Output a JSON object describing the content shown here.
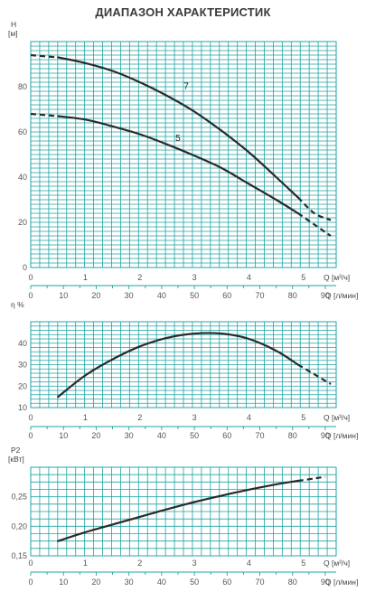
{
  "title": "ДИАПАЗОН ХАРАКТЕРИСТИК",
  "chart_data": [
    {
      "type": "line",
      "ylabel": "H",
      "yunit": "[м]",
      "xlabel": "Q [м³/ч]",
      "x2label": "Q [л/мин]",
      "xlim": [
        0,
        5.6
      ],
      "ylim": [
        0,
        100
      ],
      "yticks": [
        0,
        20,
        40,
        60,
        80
      ],
      "xticks": [
        "0",
        "1",
        "2",
        "3",
        "4",
        "5"
      ],
      "x2ticks": [
        "0",
        "10",
        "20",
        "30",
        "40",
        "50",
        "60",
        "70",
        "80",
        "90"
      ],
      "series": [
        {
          "name": "7",
          "x": [
            0,
            0.5,
            1,
            1.5,
            2,
            2.5,
            3,
            3.5,
            4,
            4.5,
            4.9,
            5.2,
            5.5
          ],
          "y": [
            94,
            93,
            90.5,
            87,
            82,
            76,
            69,
            60.5,
            51,
            40,
            31,
            24,
            21
          ],
          "dashed_until": 0.5,
          "dashed_from": 4.9
        },
        {
          "name": "5",
          "x": [
            0,
            0.5,
            1,
            1.5,
            2,
            2.5,
            3,
            3.5,
            4,
            4.5,
            4.9,
            5.2,
            5.5
          ],
          "y": [
            68,
            67,
            65.5,
            62.5,
            59,
            54.5,
            49.5,
            44,
            37,
            30,
            24,
            19,
            14
          ],
          "dashed_until": 0.4,
          "dashed_from": 4.9
        }
      ]
    },
    {
      "type": "line",
      "ylabel": "η %",
      "xlabel": "Q [м³/ч]",
      "x2label": "Q [л/мин]",
      "xlim": [
        0,
        5.6
      ],
      "ylim": [
        10,
        50
      ],
      "yticks": [
        10,
        20,
        30,
        40
      ],
      "xticks": [
        "0",
        "1",
        "2",
        "3",
        "4",
        "5"
      ],
      "x2ticks": [
        "0",
        "10",
        "20",
        "30",
        "40",
        "50",
        "60",
        "70",
        "80",
        "90"
      ],
      "series": [
        {
          "name": "",
          "x": [
            0.5,
            1,
            1.5,
            2,
            2.5,
            3,
            3.5,
            4,
            4.5,
            4.9,
            5.2,
            5.5
          ],
          "y": [
            15,
            25,
            32.5,
            38.5,
            42.5,
            44.5,
            44.5,
            42,
            36.5,
            30,
            25.5,
            21
          ],
          "dashed_from": 4.9
        }
      ]
    },
    {
      "type": "line",
      "ylabel": "P2",
      "yunit": "[кВт]",
      "xlabel": "Q [м³/ч]",
      "x2label": "Q [л/мин]",
      "xlim": [
        0,
        5.6
      ],
      "ylim": [
        0.15,
        0.3
      ],
      "yticks": [
        "0,15",
        "0,20",
        "0,25"
      ],
      "xticks": [
        "0",
        "1",
        "2",
        "3",
        "4",
        "5"
      ],
      "x2ticks": [
        "0",
        "10",
        "20",
        "30",
        "40",
        "50",
        "60",
        "70",
        "80",
        "90"
      ],
      "series": [
        {
          "name": "",
          "x": [
            0.5,
            1,
            1.5,
            2,
            2.5,
            3,
            3.5,
            4,
            4.5,
            4.9,
            5.2,
            5.4
          ],
          "y": [
            0.175,
            0.19,
            0.203,
            0.216,
            0.229,
            0.241,
            0.252,
            0.262,
            0.271,
            0.277,
            0.281,
            0.284
          ],
          "dashed_from": 4.9
        }
      ]
    }
  ]
}
